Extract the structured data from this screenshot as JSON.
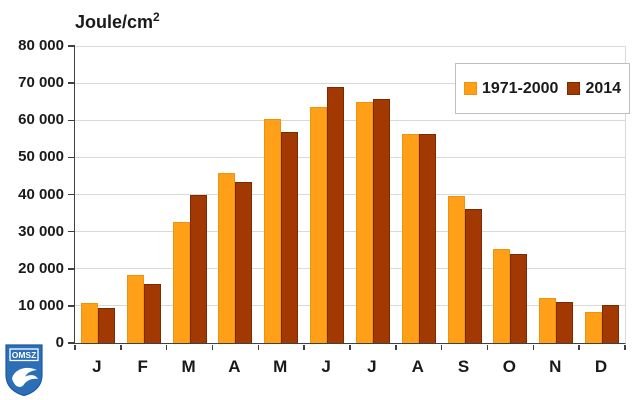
{
  "header": {
    "title_base": "Joule/cm",
    "title_sup": "2"
  },
  "logo": {
    "label": "OMSZ",
    "color": "#2c6fb7"
  },
  "colors": {
    "gridline": "#d9d9d9",
    "axis": "#404040",
    "text": "#1a1a1a",
    "legend_border": "#bfbfbf",
    "background": "#ffffff"
  },
  "chart_data": {
    "type": "bar",
    "title": "Joule/cm²",
    "ylabel": "Joule/cm²",
    "xlabel": "",
    "categories": [
      "J",
      "F",
      "M",
      "A",
      "M",
      "J",
      "J",
      "A",
      "S",
      "O",
      "N",
      "D"
    ],
    "series": [
      {
        "name": "1971-2000",
        "color": "#ffa018",
        "border": "#ec9310",
        "values": [
          10900,
          18300,
          32700,
          45900,
          60300,
          63600,
          64800,
          56400,
          39600,
          25200,
          12000,
          8400
        ]
      },
      {
        "name": "2014",
        "color": "#a23902",
        "border": "#7c2b00",
        "values": [
          9400,
          16000,
          39800,
          43400,
          56900,
          69000,
          65600,
          56400,
          36000,
          24100,
          11100,
          10300
        ]
      }
    ],
    "ylim": [
      0,
      80000
    ],
    "ytick_step": 10000,
    "ytick_labels": [
      "0",
      "10 000",
      "20 000",
      "30 000",
      "40 000",
      "50 000",
      "60 000",
      "70 000",
      "80 000"
    ],
    "grid": true,
    "legend_position": "top-right"
  }
}
